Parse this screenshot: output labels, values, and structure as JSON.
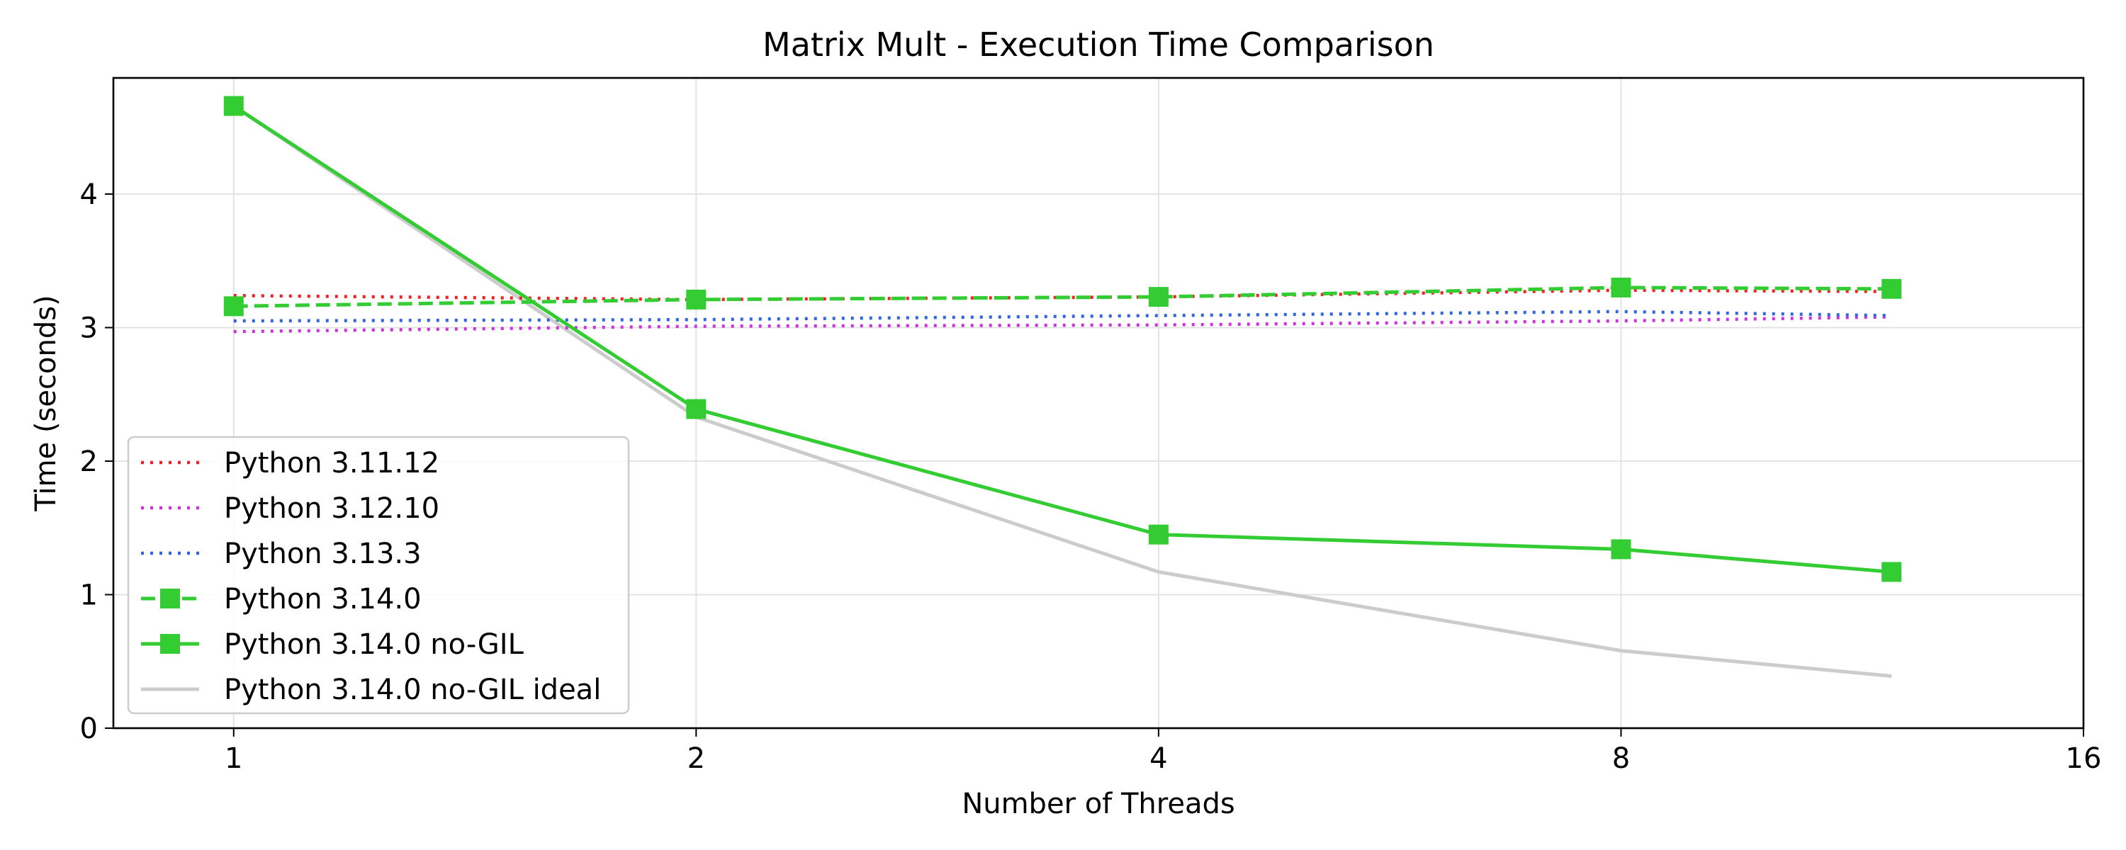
{
  "chart_data": {
    "type": "line",
    "title": "Matrix Mult - Execution Time Comparison",
    "xlabel": "Number of Threads",
    "ylabel": "Time (seconds)",
    "x_scale": "log2",
    "xlim": [
      0.835,
      16
    ],
    "ylim": [
      0,
      4.87
    ],
    "x_ticks": [
      1,
      2,
      4,
      8,
      16
    ],
    "x_tick_labels": [
      "1",
      "2",
      "4",
      "8",
      "16"
    ],
    "y_ticks": [
      0,
      1,
      2,
      3,
      4
    ],
    "y_tick_labels": [
      "0",
      "1",
      "2",
      "3",
      "4"
    ],
    "grid": true,
    "legend_position": "lower-left",
    "x": [
      1,
      2,
      4,
      8,
      12
    ],
    "series": [
      {
        "name": "Python 3.11.12",
        "color": "#ee2222",
        "style": "dotted",
        "marker": "none",
        "values": [
          3.24,
          3.21,
          3.23,
          3.28,
          3.27
        ]
      },
      {
        "name": "Python 3.12.10",
        "color": "#cc33dd",
        "style": "dotted",
        "marker": "none",
        "values": [
          2.97,
          3.01,
          3.02,
          3.05,
          3.08
        ]
      },
      {
        "name": "Python 3.13.3",
        "color": "#3366dd",
        "style": "dotted",
        "marker": "none",
        "values": [
          3.05,
          3.06,
          3.09,
          3.12,
          3.09
        ]
      },
      {
        "name": "Python 3.14.0",
        "color": "#33cc33",
        "style": "dashed",
        "marker": "square",
        "values": [
          3.16,
          3.21,
          3.23,
          3.3,
          3.29
        ]
      },
      {
        "name": "Python 3.14.0 no-GIL",
        "color": "#33cc33",
        "style": "solid",
        "marker": "square",
        "values": [
          4.66,
          2.39,
          1.45,
          1.34,
          1.17
        ]
      },
      {
        "name": "Python 3.14.0 no-GIL ideal",
        "color": "#cccccc",
        "style": "solid",
        "marker": "none",
        "values": [
          4.66,
          2.33,
          1.17,
          0.58,
          0.39
        ]
      }
    ]
  }
}
